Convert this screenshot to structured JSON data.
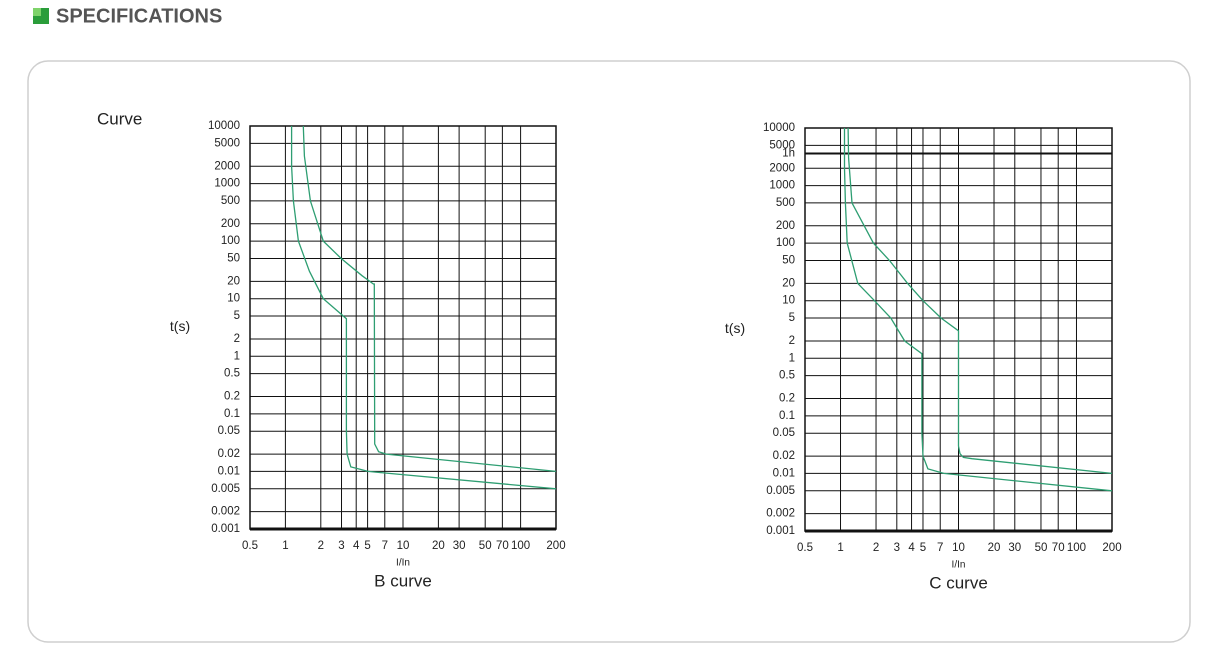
{
  "header": {
    "title": "SPECIFICATIONS"
  },
  "label": "Curve",
  "chart_data": [
    {
      "type": "line",
      "title": "B curve",
      "x_label": "I/In",
      "y_label": "t(s)",
      "log_x": true,
      "log_y": true,
      "grid": true,
      "xlim": [
        0.5,
        200
      ],
      "ylim": [
        0.001,
        10000
      ],
      "xticks": [
        0.5,
        1,
        2,
        3,
        4,
        5,
        7,
        10,
        20,
        30,
        50,
        70,
        100,
        200
      ],
      "yticks": [
        10000,
        5000,
        2000,
        1000,
        500,
        200,
        100,
        50,
        20,
        10,
        5,
        2,
        1,
        0.5,
        0.2,
        0.1,
        0.05,
        0.02,
        0.01,
        0.005,
        0.002,
        0.001
      ],
      "series": [
        {
          "color": "#2e9e72",
          "x": [
            1.13,
            1.13,
            1.17,
            1.29,
            1.6,
            2.1,
            3.3,
            3.3,
            3.35,
            3.6,
            5.05,
            200
          ],
          "values": [
            10000,
            2000,
            500,
            100,
            30,
            10,
            4.5,
            0.05,
            0.02,
            0.012,
            0.01,
            0.005
          ]
        },
        {
          "color": "#2e9e72",
          "x": [
            1.42,
            1.45,
            1.63,
            2.1,
            2.98,
            4.5,
            5.6,
            5.7,
            5.75,
            6.2,
            7.2,
            200
          ],
          "values": [
            10000,
            3000,
            500,
            100,
            50,
            25,
            18,
            18,
            0.03,
            0.022,
            0.02,
            0.01
          ]
        }
      ]
    },
    {
      "type": "line",
      "title": "C curve",
      "x_label": "I/In",
      "y_label": "t(s)",
      "log_x": true,
      "log_y": true,
      "grid": true,
      "xlim": [
        0.5,
        200
      ],
      "ylim": [
        0.001,
        10000
      ],
      "xticks": [
        0.5,
        1,
        2,
        3,
        4,
        5,
        7,
        10,
        20,
        30,
        50,
        70,
        100,
        200
      ],
      "yticks": [
        10000,
        5000,
        {
          "value": 3600,
          "label": "1h"
        },
        2000,
        1000,
        500,
        200,
        100,
        50,
        20,
        10,
        5,
        2,
        1,
        0.5,
        0.2,
        0.1,
        0.05,
        0.02,
        0.01,
        0.005,
        0.002,
        0.001
      ],
      "series": [
        {
          "color": "#2e9e72",
          "x": [
            1.08,
            1.08,
            1.1,
            1.14,
            1.4,
            1.94,
            2.67,
            3.5,
            4.9,
            4.9,
            5.0,
            5.5,
            7.5,
            200
          ],
          "values": [
            10000,
            2000,
            500,
            100,
            20,
            10,
            5,
            2,
            1.2,
            0.05,
            0.02,
            0.012,
            0.01,
            0.005
          ]
        },
        {
          "color": "#2e9e72",
          "x": [
            1.16,
            1.17,
            1.25,
            1.9,
            2.6,
            3.7,
            5,
            7.1,
            10,
            10,
            10.3,
            11,
            13,
            200
          ],
          "values": [
            10000,
            3000,
            500,
            100,
            50,
            20,
            10,
            5,
            3,
            0.03,
            0.022,
            0.019,
            0.018,
            0.01
          ]
        }
      ]
    }
  ]
}
